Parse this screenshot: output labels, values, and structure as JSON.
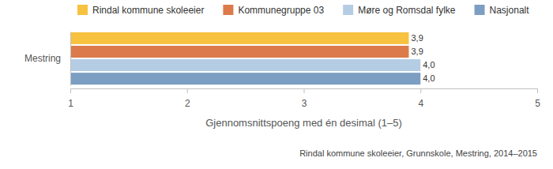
{
  "chart_data": {
    "type": "bar",
    "orientation": "horizontal",
    "categories": [
      "Mestring"
    ],
    "series": [
      {
        "name": "Rindal kommune skoleeier",
        "color": "#f7c23f",
        "values": [
          3.9
        ],
        "value_labels": [
          "3,9"
        ]
      },
      {
        "name": "Kommunegruppe 03",
        "color": "#dc7a4b",
        "values": [
          3.9
        ],
        "value_labels": [
          "3,9"
        ]
      },
      {
        "name": "Møre og Romsdal fylke",
        "color": "#b5cde4",
        "values": [
          4.0
        ],
        "value_labels": [
          "4,0"
        ]
      },
      {
        "name": "Nasjonalt",
        "color": "#7c9ec2",
        "values": [
          4.0
        ],
        "value_labels": [
          "4,0"
        ]
      }
    ],
    "x_label": "Gjennomsnittspoeng med én desimal (1–5)",
    "xlim": [
      1,
      5
    ],
    "xticks": [
      1,
      2,
      3,
      4,
      5
    ],
    "grid": false,
    "legend": "top",
    "data_labels": true,
    "annotations": [
      "Rindal kommune skoleeier, Grunnskole, Mestring, 2014–2015"
    ]
  }
}
